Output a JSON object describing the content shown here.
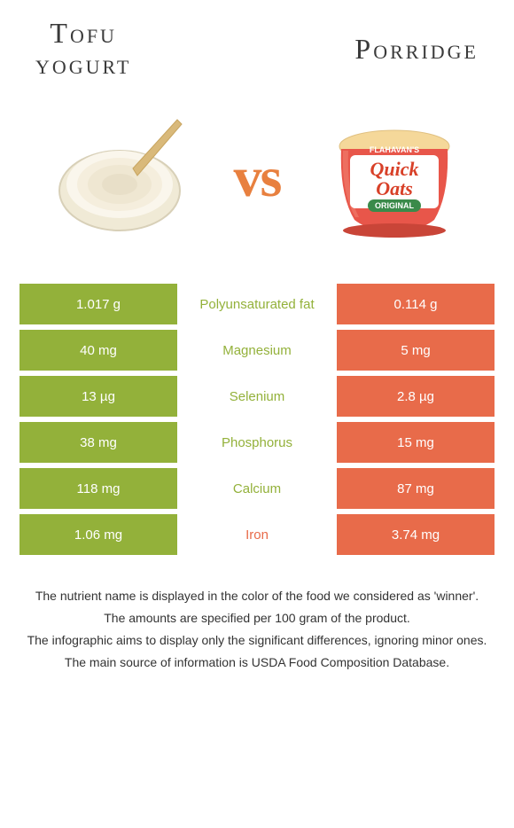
{
  "colors": {
    "left_bg": "#93b13a",
    "right_bg": "#e86b4a",
    "vs_color": "#e8803f",
    "winner_left_text": "#93b13a",
    "winner_right_text": "#e86b4a"
  },
  "header": {
    "left_title_line1": "Tofu",
    "left_title_line2": "yogurt",
    "right_title": "Porridge",
    "vs_label": "vs"
  },
  "rows": [
    {
      "left": "1.017 g",
      "label": "Polyunsaturated fat",
      "right": "0.114 g",
      "winner": "left"
    },
    {
      "left": "40 mg",
      "label": "Magnesium",
      "right": "5 mg",
      "winner": "left"
    },
    {
      "left": "13 µg",
      "label": "Selenium",
      "right": "2.8 µg",
      "winner": "left"
    },
    {
      "left": "38 mg",
      "label": "Phosphorus",
      "right": "15 mg",
      "winner": "left"
    },
    {
      "left": "118 mg",
      "label": "Calcium",
      "right": "87 mg",
      "winner": "left"
    },
    {
      "left": "1.06 mg",
      "label": "Iron",
      "right": "3.74 mg",
      "winner": "right"
    }
  ],
  "footer": {
    "line1": "The nutrient name is displayed in the color of the food we considered as 'winner'.",
    "line2": "The amounts are specified per 100 gram of the product.",
    "line3": "The infographic aims to display only the significant differences, ignoring minor ones.",
    "line4": "The main source of information is USDA Food Composition Database."
  },
  "porridge_pack": {
    "brand": "FLAHAVAN'S",
    "name1": "Quick",
    "name2": "Oats",
    "variant": "ORIGINAL"
  }
}
